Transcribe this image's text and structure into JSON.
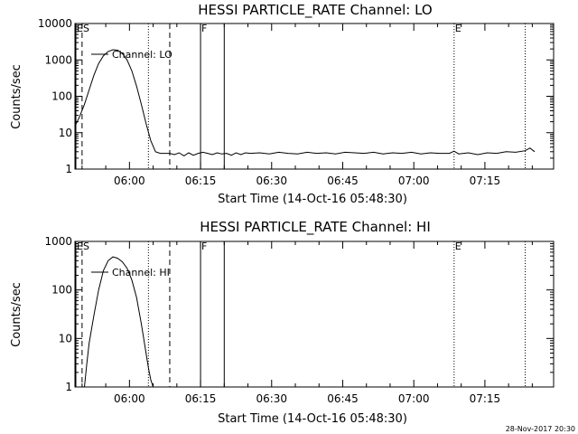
{
  "footer_timestamp": "28-Nov-2017 20:30",
  "chart_data": [
    {
      "type": "line",
      "title": "HESSI PARTICLE_RATE Channel: LO",
      "xlabel": "Start Time (14-Oct-16 05:48:30)",
      "ylabel": "Counts/sec",
      "yscale": "log",
      "xlim": [
        "05:48:30",
        "07:29:30"
      ],
      "ylim": [
        1,
        10000
      ],
      "ytick_labels": [
        "1",
        "10",
        "100",
        "1000",
        "10000"
      ],
      "ytick_values": [
        1,
        10,
        100,
        1000,
        10000
      ],
      "xtick_labels": [
        "06:00",
        "06:15",
        "06:30",
        "06:45",
        "07:00",
        "07:15"
      ],
      "legend": "top-left",
      "series": [
        {
          "name": "Channel: LO",
          "x": [
            "05:48:30",
            "05:49:30",
            "05:50:30",
            "05:51:30",
            "05:52:30",
            "05:53:30",
            "05:54:30",
            "05:55:30",
            "05:56:30",
            "05:57:30",
            "05:58:30",
            "05:59:30",
            "06:00:30",
            "06:01:30",
            "06:02:30",
            "06:03:30",
            "06:04:30",
            "06:05:30",
            "06:06:30",
            "06:07:30",
            "06:08:30",
            "06:09:30",
            "06:10:30",
            "06:11:30",
            "06:12:30",
            "06:13:30",
            "06:14:30",
            "06:15:30",
            "06:16:30",
            "06:17:30",
            "06:18:30",
            "06:19:30",
            "06:20:30",
            "06:21:30",
            "06:22:30",
            "06:23:30",
            "06:24:30",
            "06:25:30",
            "06:27:30",
            "06:29:30",
            "06:31:30",
            "06:33:30",
            "06:35:30",
            "06:37:30",
            "06:39:30",
            "06:41:30",
            "06:43:30",
            "06:45:30",
            "06:47:30",
            "06:49:30",
            "06:51:30",
            "06:53:30",
            "06:55:30",
            "06:57:30",
            "06:59:30",
            "07:01:30",
            "07:03:30",
            "07:05:30",
            "07:07:30",
            "07:08:30",
            "07:09:30",
            "07:11:30",
            "07:13:30",
            "07:15:30",
            "07:17:30",
            "07:19:30",
            "07:21:30",
            "07:23:30",
            "07:24:30",
            "07:25:30"
          ],
          "values": [
            15,
            28,
            60,
            150,
            380,
            800,
            1300,
            1700,
            1900,
            1850,
            1500,
            1000,
            500,
            190,
            60,
            18,
            6,
            3,
            2.7,
            2.7,
            2.7,
            2.5,
            2.8,
            2.3,
            2.8,
            2.4,
            2.7,
            2.9,
            2.7,
            2.5,
            2.8,
            2.6,
            2.7,
            2.4,
            2.8,
            2.5,
            2.8,
            2.7,
            2.8,
            2.6,
            2.9,
            2.7,
            2.6,
            2.9,
            2.7,
            2.8,
            2.6,
            2.9,
            2.8,
            2.7,
            2.9,
            2.6,
            2.8,
            2.7,
            2.9,
            2.6,
            2.8,
            2.7,
            2.7,
            3.1,
            2.6,
            2.8,
            2.5,
            2.8,
            2.7,
            3.0,
            2.9,
            3.2,
            3.8,
            3.0
          ]
        }
      ],
      "markers": [
        {
          "label": "ES",
          "x": "05:48:30",
          "style": "solid"
        },
        {
          "label": "",
          "x": "05:50:00",
          "style": "dashed"
        },
        {
          "label": "",
          "x": "06:04:00",
          "style": "dotted"
        },
        {
          "label": "",
          "x": "06:08:30",
          "style": "dashed"
        },
        {
          "label": "F",
          "x": "06:15:00",
          "style": "solid"
        },
        {
          "label": "",
          "x": "06:20:00",
          "style": "solid"
        },
        {
          "label": "E",
          "x": "07:08:30",
          "style": "dotted"
        },
        {
          "label": "",
          "x": "07:23:30",
          "style": "dotted"
        }
      ]
    },
    {
      "type": "line",
      "title": "HESSI PARTICLE_RATE Channel: HI",
      "xlabel": "Start Time (14-Oct-16 05:48:30)",
      "ylabel": "Counts/sec",
      "yscale": "log",
      "xlim": [
        "05:48:30",
        "07:29:30"
      ],
      "ylim": [
        1,
        1000
      ],
      "ytick_labels": [
        "1",
        "10",
        "100",
        "1000"
      ],
      "ytick_values": [
        1,
        10,
        100,
        1000
      ],
      "xtick_labels": [
        "06:00",
        "06:15",
        "06:30",
        "06:45",
        "07:00",
        "07:15"
      ],
      "legend": "top-left",
      "series": [
        {
          "name": "Channel: HI",
          "x": [
            "05:50:30",
            "05:51:00",
            "05:51:30",
            "05:52:30",
            "05:53:30",
            "05:54:30",
            "05:55:30",
            "05:56:30",
            "05:57:30",
            "05:58:30",
            "05:59:30",
            "06:00:30",
            "06:01:30",
            "06:02:30",
            "06:03:30",
            "06:04:00",
            "06:04:30",
            "06:05:00"
          ],
          "values": [
            1,
            3,
            8,
            30,
            100,
            250,
            400,
            480,
            450,
            380,
            280,
            160,
            70,
            20,
            5,
            2.5,
            1.4,
            1
          ]
        }
      ],
      "markers": [
        {
          "label": "ES",
          "x": "05:48:30",
          "style": "solid"
        },
        {
          "label": "",
          "x": "05:50:00",
          "style": "dashed"
        },
        {
          "label": "",
          "x": "06:04:00",
          "style": "dotted"
        },
        {
          "label": "",
          "x": "06:08:30",
          "style": "dashed"
        },
        {
          "label": "F",
          "x": "06:15:00",
          "style": "solid"
        },
        {
          "label": "",
          "x": "06:20:00",
          "style": "solid"
        },
        {
          "label": "E",
          "x": "07:08:30",
          "style": "dotted"
        },
        {
          "label": "",
          "x": "07:23:30",
          "style": "dotted"
        }
      ]
    }
  ]
}
